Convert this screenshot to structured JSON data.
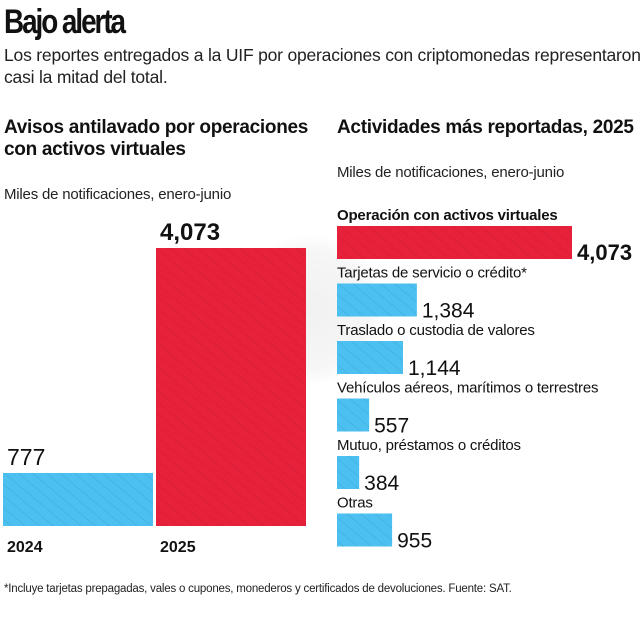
{
  "header": {
    "title": "Bajo alerta",
    "subtitle": "Los reportes entregados a la UIF por operaciones con criptomonedas representaron casi la mitad del total."
  },
  "colors": {
    "red": "#e8213a",
    "blue": "#4cc0f0",
    "text": "#111111"
  },
  "footnote": "*Incluye tarjetas prepagadas, vales o cupones, monederos y certificados de devoluciones. Fuente: SAT.",
  "chart_data": [
    {
      "type": "bar",
      "orientation": "vertical",
      "title": "Avisos antilavado por operaciones con activos virtuales",
      "subtitle": "Miles de notificaciones, enero-junio",
      "categories": [
        "2024",
        "2025"
      ],
      "values": [
        777,
        4073
      ],
      "value_labels": [
        "777",
        "4,073"
      ],
      "bar_colors": [
        "#4cc0f0",
        "#e8213a"
      ],
      "xlabel": "",
      "ylabel": "",
      "ylim": [
        0,
        4073
      ],
      "grid": false
    },
    {
      "type": "bar",
      "orientation": "horizontal",
      "title": "Actividades más reportadas, 2025",
      "subtitle": "Miles de notificaciones, enero-junio",
      "categories": [
        "Operación con activos virtuales",
        "Tarjetas de servicio o crédito*",
        "Traslado o custodia de valores",
        "Vehículos aéreos, marítimos o terrestres",
        "Mutuo, préstamos o créditos",
        "Otras"
      ],
      "values": [
        4073,
        1384,
        1144,
        557,
        384,
        955
      ],
      "value_labels": [
        "4,073",
        "1,384",
        "1,144",
        "557",
        "384",
        "955"
      ],
      "bar_colors": [
        "#e8213a",
        "#4cc0f0",
        "#4cc0f0",
        "#4cc0f0",
        "#4cc0f0",
        "#4cc0f0"
      ],
      "highlight_index": 0,
      "xlim": [
        0,
        4073
      ],
      "grid": false
    }
  ]
}
